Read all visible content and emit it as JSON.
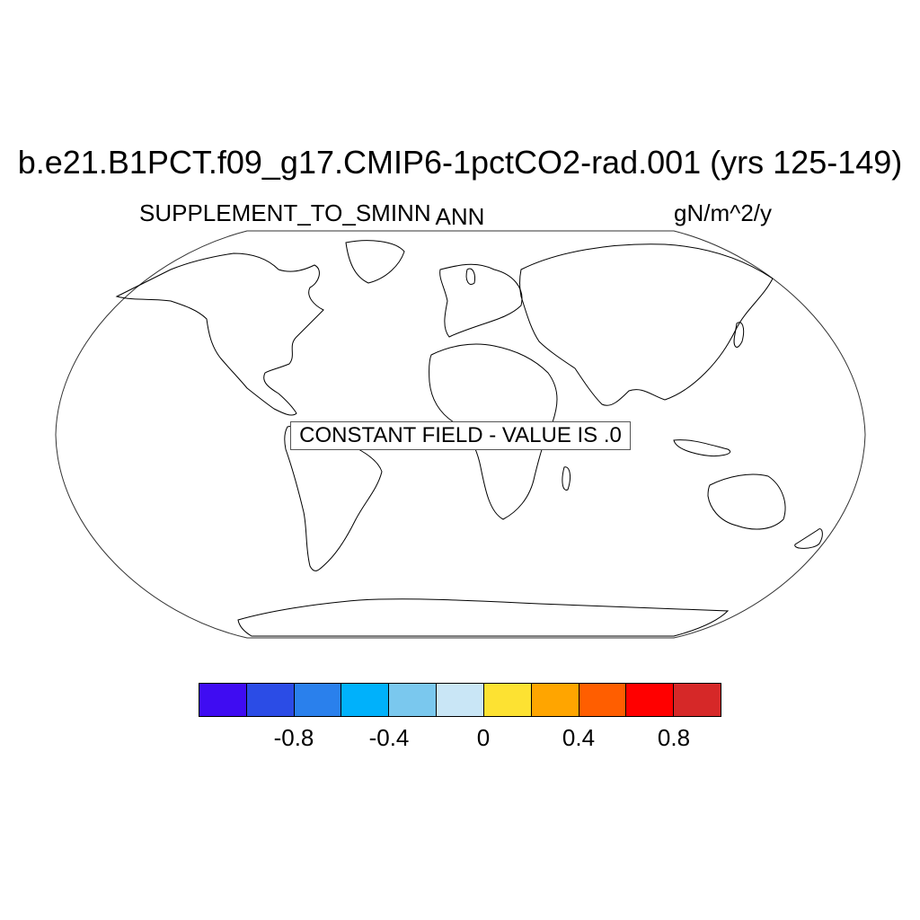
{
  "title": "b.e21.B1PCT.f09_g17.CMIP6-1pctCO2-rad.001 (yrs 125-149)",
  "variable": "SUPPLEMENT_TO_SMINN",
  "period": "ANN",
  "units": "gN/m^2/y",
  "notice": "CONSTANT FIELD - VALUE IS .0",
  "colorbar": {
    "colors": [
      "#3f0cf2",
      "#2b4ce6",
      "#2a80ec",
      "#00b1fb",
      "#7ac8ee",
      "#c9e6f6",
      "#fde232",
      "#ffa500",
      "#ff5e00",
      "#ff0000",
      "#d62828"
    ],
    "labels": [
      "-0.8",
      "-0.4",
      "0",
      "0.4",
      "0.8"
    ]
  }
}
